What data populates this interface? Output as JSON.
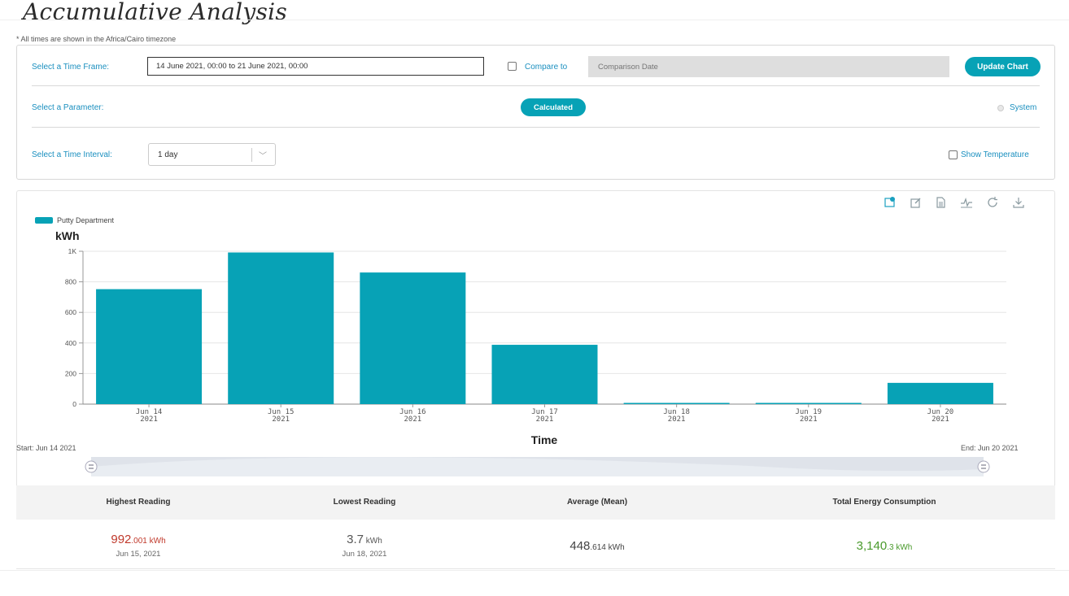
{
  "page": {
    "title": "Accumulative Analysis",
    "timezone_note": "* All times are shown in the Africa/Cairo timezone"
  },
  "filters": {
    "time_frame_label": "Select a Time Frame:",
    "time_frame_value": "14 June 2021, 00:00  to  21 June 2021, 00:00",
    "compare_label": "Compare to",
    "compare_checked": false,
    "comparison_placeholder": "Comparison Date",
    "update_label": "Update Chart",
    "parameter_label": "Select a Parameter:",
    "calculated_label": "Calculated",
    "system_label": "System",
    "interval_label": "Select a Time Interval:",
    "interval_value": "1 day",
    "show_temperature_label": "Show Temperature",
    "show_temperature_checked": false
  },
  "toolbar": {
    "icons": [
      "data-view-icon",
      "edit-icon",
      "document-icon",
      "line-chart-icon",
      "refresh-icon",
      "download-icon"
    ]
  },
  "chart_data": {
    "type": "bar",
    "legend": [
      "Putty Department"
    ],
    "ylabel": "kWh",
    "xlabel": "Time",
    "categories": [
      "Jun 14\n2021",
      "Jun 15\n2021",
      "Jun 16\n2021",
      "Jun 17\n2021",
      "Jun 18\n2021",
      "Jun 19\n2021",
      "Jun 20\n2021"
    ],
    "category_lines": [
      [
        "Jun 14",
        "2021"
      ],
      [
        "Jun 15",
        "2021"
      ],
      [
        "Jun 16",
        "2021"
      ],
      [
        "Jun 17",
        "2021"
      ],
      [
        "Jun 18",
        "2021"
      ],
      [
        "Jun 19",
        "2021"
      ],
      [
        "Jun 20",
        "2021"
      ]
    ],
    "series": [
      {
        "name": "Putty Department",
        "values": [
          752,
          992.001,
          861,
          388,
          3.7,
          4,
          139
        ]
      }
    ],
    "yticks": [
      0,
      200,
      400,
      600,
      800,
      1000
    ],
    "ytick_labels": [
      "0",
      "200",
      "400",
      "600",
      "800",
      "1K"
    ],
    "ylim": [
      0,
      1000
    ],
    "grid": true,
    "legend_position": "top-left",
    "color": "#07a2b6"
  },
  "range": {
    "start_label": "Start: Jun 14 2021",
    "end_label": "End: Jun 20 2021"
  },
  "stats": {
    "highest": {
      "heading": "Highest Reading",
      "value_int": "992",
      "value_dec": ".001",
      "unit": " kWh",
      "date": "Jun 15, 2021",
      "color": "#c0392b"
    },
    "lowest": {
      "heading": "Lowest Reading",
      "value_int": "3",
      "value_dec": ".7",
      "unit": " kWh",
      "date": "Jun 18, 2021",
      "color": "#555555"
    },
    "average": {
      "heading": "Average (Mean)",
      "value_int": "448",
      "value_dec": ".614",
      "unit": " kWh",
      "color": "#444444"
    },
    "total": {
      "heading": "Total Energy Consumption",
      "value_int": "3,140",
      "value_dec": ".3",
      "unit": " kWh",
      "color": "#4a9a2c"
    }
  }
}
